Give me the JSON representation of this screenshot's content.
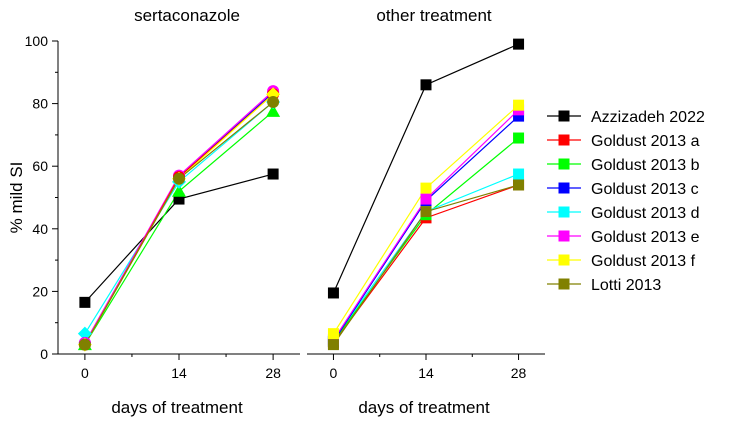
{
  "chart_data": {
    "type": "line",
    "shared": {
      "ylabel": "% mild SI",
      "ylim": [
        0,
        100
      ],
      "yticks": [
        0,
        20,
        40,
        60,
        80,
        100
      ],
      "xticks": [
        0,
        14,
        28
      ],
      "xlim": [
        -4,
        32
      ],
      "xlabel": "days of treatment"
    },
    "panels": [
      {
        "title": "sertaconazole",
        "series": [
          {
            "name": "Azzizadeh 2022",
            "color": "#000000",
            "marker": "square",
            "values": [
              [
                0,
                16.5
              ],
              [
                14,
                49.5
              ],
              [
                28,
                57.5
              ]
            ]
          },
          {
            "name": "Goldust 2013 b",
            "color": "#00ff00",
            "marker": "triangle",
            "values": [
              [
                0,
                3.0
              ],
              [
                14,
                52.0
              ],
              [
                28,
                77.5
              ]
            ]
          },
          {
            "name": "Goldust 2013 d",
            "color": "#00ffff",
            "marker": "diamond",
            "values": [
              [
                0,
                6.5
              ],
              [
                14,
                55.0
              ],
              [
                28,
                80.5
              ]
            ]
          },
          {
            "name": "Goldust 2013 c",
            "color": "#0000ff",
            "marker": "circle",
            "values": [
              [
                0,
                3.5
              ],
              [
                14,
                56.5
              ],
              [
                28,
                83.5
              ]
            ]
          },
          {
            "name": "Goldust 2013 e",
            "color": "#ff00ff",
            "marker": "circle",
            "values": [
              [
                0,
                3.5
              ],
              [
                14,
                57.0
              ],
              [
                28,
                84.0
              ]
            ]
          },
          {
            "name": "Goldust 2013 a",
            "color": "#ff0000",
            "marker": "circle",
            "values": [
              [
                0,
                3.0
              ],
              [
                14,
                56.5
              ],
              [
                28,
                83.0
              ]
            ]
          },
          {
            "name": "Goldust 2013 f",
            "color": "#ffff00",
            "marker": "diamond",
            "values": [
              [
                0,
                3.0
              ],
              [
                14,
                56.0
              ],
              [
                28,
                83.0
              ]
            ]
          },
          {
            "name": "Lotti 2013",
            "color": "#808000",
            "marker": "circle",
            "values": [
              [
                0,
                3.0
              ],
              [
                14,
                56.0
              ],
              [
                28,
                80.5
              ]
            ]
          }
        ]
      },
      {
        "title": "other treatment",
        "series": [
          {
            "name": "Azzizadeh 2022",
            "color": "#000000",
            "marker": "square",
            "values": [
              [
                0,
                19.5
              ],
              [
                14,
                86.0
              ],
              [
                28,
                99.0
              ]
            ]
          },
          {
            "name": "Goldust 2013 a",
            "color": "#ff0000",
            "marker": "square",
            "values": [
              [
                0,
                3.5
              ],
              [
                14,
                43.5
              ],
              [
                28,
                54.0
              ]
            ]
          },
          {
            "name": "Goldust 2013 b",
            "color": "#00ff00",
            "marker": "square",
            "values": [
              [
                0,
                4.0
              ],
              [
                14,
                44.5
              ],
              [
                28,
                69.0
              ]
            ]
          },
          {
            "name": "Goldust 2013 d",
            "color": "#00ffff",
            "marker": "square",
            "values": [
              [
                0,
                4.5
              ],
              [
                14,
                45.5
              ],
              [
                28,
                57.5
              ]
            ]
          },
          {
            "name": "Goldust 2013 c",
            "color": "#0000ff",
            "marker": "square",
            "values": [
              [
                0,
                4.0
              ],
              [
                14,
                49.0
              ],
              [
                28,
                76.0
              ]
            ]
          },
          {
            "name": "Goldust 2013 e",
            "color": "#ff00ff",
            "marker": "square",
            "values": [
              [
                0,
                4.5
              ],
              [
                14,
                49.5
              ],
              [
                28,
                78.0
              ]
            ]
          },
          {
            "name": "Goldust 2013 f",
            "color": "#ffff00",
            "marker": "square",
            "values": [
              [
                0,
                6.5
              ],
              [
                14,
                53.0
              ],
              [
                28,
                79.5
              ]
            ]
          },
          {
            "name": "Lotti 2013",
            "color": "#808000",
            "marker": "square",
            "values": [
              [
                0,
                3.0
              ],
              [
                14,
                45.5
              ],
              [
                28,
                54.0
              ]
            ]
          }
        ]
      }
    ],
    "legend": {
      "placement": "right",
      "entries": [
        {
          "name": "Azzizadeh 2022",
          "color": "#000000"
        },
        {
          "name": "Goldust 2013 a",
          "color": "#ff0000"
        },
        {
          "name": "Goldust 2013 b",
          "color": "#00ff00"
        },
        {
          "name": "Goldust 2013 c",
          "color": "#0000ff"
        },
        {
          "name": "Goldust 2013 d",
          "color": "#00ffff"
        },
        {
          "name": "Goldust 2013 e",
          "color": "#ff00ff"
        },
        {
          "name": "Goldust 2013 f",
          "color": "#ffff00"
        },
        {
          "name": "Lotti 2013",
          "color": "#808000"
        }
      ]
    }
  }
}
